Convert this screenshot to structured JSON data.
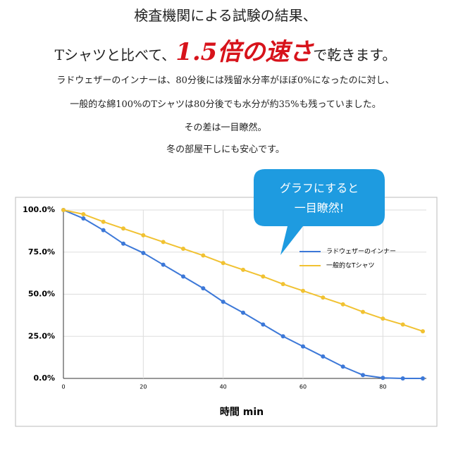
{
  "header": {
    "line1": "検査機関による試験の結果、",
    "line2": [
      "Tシャツと比べて、",
      "1.5倍の速さ",
      "で乾きます。"
    ],
    "body": [
      "ラドウェザーのインナーは、80分後には残留水分率がほぼ0%になったのに対し、",
      "一般的な綿100%のTシャツは80分後でも水分が約35%も残っていました。",
      "その差は一目瞭然。",
      "冬の部屋干しにも安心です。"
    ],
    "callout": [
      "グラフにすると",
      "一目瞭然!"
    ]
  },
  "chart_data": {
    "type": "line",
    "x_label": "時間 min",
    "x": [
      0,
      5,
      10,
      15,
      20,
      25,
      30,
      35,
      40,
      45,
      50,
      55,
      60,
      65,
      70,
      75,
      80,
      85,
      90
    ],
    "series": [
      {
        "name": "ラドウェザーのインナー",
        "color": "#3c78d8",
        "values": [
          100,
          95,
          88,
          80,
          74.5,
          67.5,
          60.5,
          53.5,
          45.5,
          39,
          32,
          25,
          19,
          13,
          7,
          2,
          0.3,
          0,
          0
        ]
      },
      {
        "name": "一般的なTシャツ",
        "color": "#f1c232",
        "values": [
          100,
          97.5,
          93,
          89,
          85,
          81,
          77,
          73,
          68.5,
          64.5,
          60.5,
          56,
          52,
          48,
          44,
          39.5,
          35.5,
          32,
          28
        ]
      }
    ],
    "xlim": [
      0,
      90
    ],
    "xticks": [
      0,
      20,
      40,
      60,
      80
    ],
    "ylim": [
      0,
      100
    ],
    "yticks": [
      {
        "value": 0,
        "label": "0.0%"
      },
      {
        "value": 25,
        "label": "25.0%"
      },
      {
        "value": 50,
        "label": "50.0%"
      },
      {
        "value": 75,
        "label": "75.0%"
      },
      {
        "value": 100,
        "label": "100.0%"
      }
    ],
    "grid": true,
    "legend": "top-right"
  }
}
